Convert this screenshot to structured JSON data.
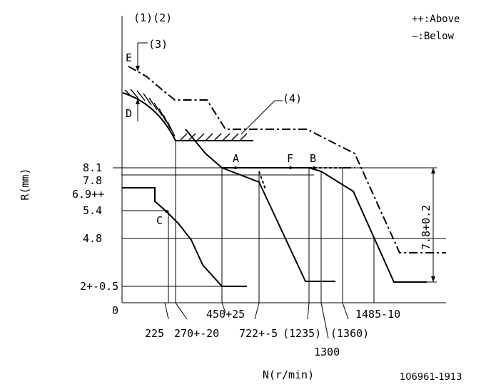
{
  "header": {
    "refs": "(1)(2)",
    "legend_above": "++:Above",
    "legend_below": "—:Below"
  },
  "axis": {
    "ylabel": "R(mm)",
    "xlabel": "N(r/min)",
    "origin": "0"
  },
  "y_ticks": [
    {
      "label": "8.1"
    },
    {
      "label": "7.8"
    },
    {
      "label": "6.9++"
    },
    {
      "label": "5.4"
    },
    {
      "label": "4.8"
    },
    {
      "label": "2+-0.5"
    }
  ],
  "x_ticks": [
    {
      "label": "225"
    },
    {
      "label": "270+-20"
    },
    {
      "label": "450+25"
    },
    {
      "label": "722+-5"
    },
    {
      "label": "(1235)"
    },
    {
      "label": "1300"
    },
    {
      "label": "(1360)"
    },
    {
      "label": "1485-10"
    }
  ],
  "points": {
    "A": "A",
    "B": "B",
    "C": "C",
    "D": "D",
    "E": "E",
    "F": "F"
  },
  "callouts": {
    "c3": "(3)",
    "c4": "(4)"
  },
  "dimension": "7.8+0.2",
  "drawing_code": "106961-1913"
}
